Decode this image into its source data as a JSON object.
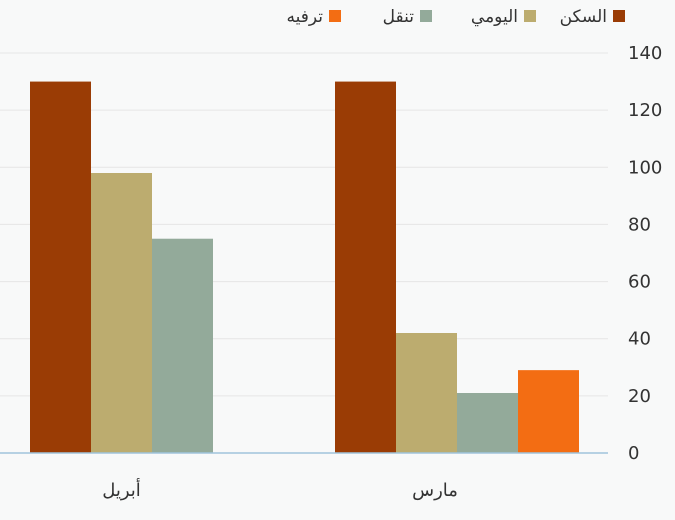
{
  "chart_data": {
    "type": "bar",
    "direction": "rtl",
    "categories": [
      "مارس",
      "أبريل"
    ],
    "series": [
      {
        "name": "السكن",
        "color": "#9a3c05",
        "values": [
          130,
          130
        ]
      },
      {
        "name": "اليومي",
        "color": "#bcac6f",
        "values": [
          42,
          98
        ]
      },
      {
        "name": "تنقل",
        "color": "#93aa9a",
        "values": [
          21,
          75
        ]
      },
      {
        "name": "ترفيه",
        "color": "#f36d13",
        "values": [
          29,
          0
        ]
      }
    ],
    "y_ticks": [
      "0",
      "20",
      "40",
      "60",
      "80",
      "100",
      "120",
      "140"
    ],
    "ylim": [
      0,
      140
    ],
    "y_axis_side": "right",
    "grid": true,
    "legend_position": "top"
  }
}
